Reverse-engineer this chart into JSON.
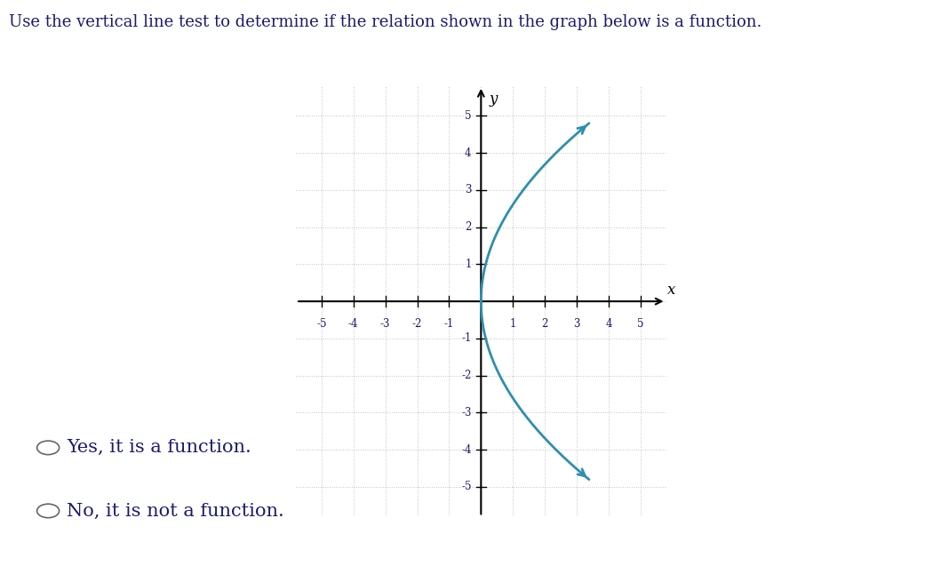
{
  "title_text": "Use the vertical line test to determine if the relation shown in the graph below is a function.",
  "graph_xlim": [
    -5.8,
    5.8
  ],
  "graph_ylim": [
    -5.8,
    5.8
  ],
  "grid_color": "#b0b0b0",
  "curve_color": "#2e8fae",
  "curve_linewidth": 2.0,
  "option1": "Yes, it is a function.",
  "option2": "No, it is not a function.",
  "option_fontsize": 15,
  "title_fontsize": 13,
  "tick_labels": [
    -5,
    -4,
    -3,
    -2,
    -1,
    1,
    2,
    3,
    4,
    5
  ],
  "bg_color": "#ffffff",
  "text_color": "#1a1a6e"
}
